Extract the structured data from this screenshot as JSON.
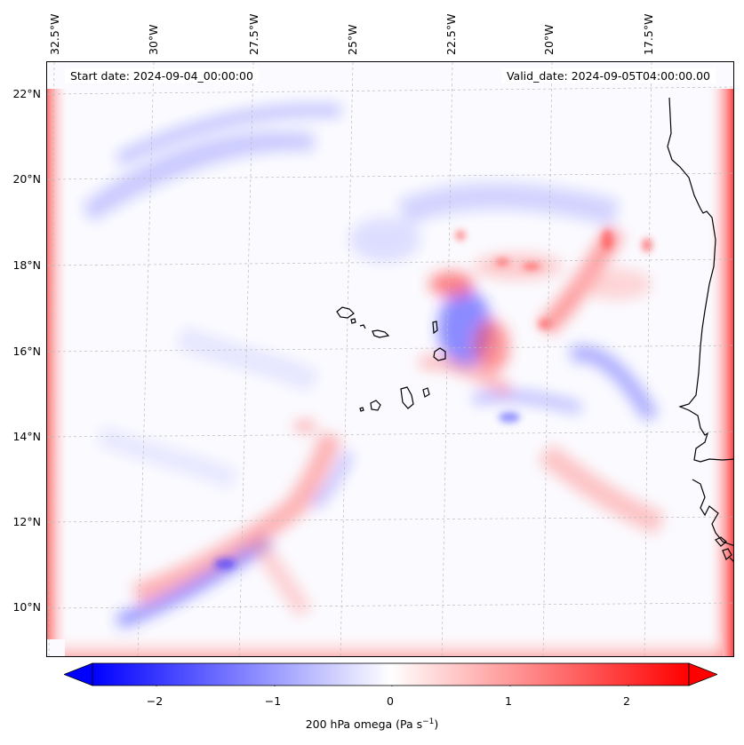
{
  "header": {
    "start_date": "Start date: 2024-09-04_00:00:00",
    "valid_date": "Valid_date: 2024-09-05T04:00:00.00"
  },
  "lon_labels": [
    "32.5°W",
    "30°W",
    "27.5°W",
    "25°W",
    "22.5°W",
    "20°W",
    "17.5°W"
  ],
  "lat_labels": [
    "22°N",
    "20°N",
    "18°N",
    "16°N",
    "14°N",
    "12°N",
    "10°N"
  ],
  "colorbar": {
    "ticks": [
      "−2",
      "−1",
      "0",
      "1",
      "2"
    ],
    "label_main": "200 hPa omega (Pa s",
    "label_sup": "−1",
    "label_end": ")",
    "min": -2.6,
    "max": 2.6,
    "colors": {
      "negative": "#0000ff",
      "zero": "#ffffff",
      "positive": "#ff0000"
    }
  },
  "map": {
    "field": "200 hPa omega",
    "lon_range": [
      -33,
      -16
    ],
    "lat_range": [
      8.8,
      22.8
    ],
    "coastline_color": "#000000",
    "gridline_color": "#bbbbbb"
  }
}
